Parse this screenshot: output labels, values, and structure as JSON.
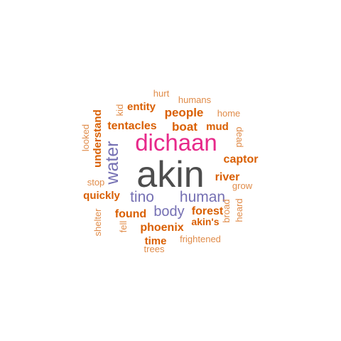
{
  "colors": {
    "gray": "#4d4d4d",
    "magenta": "#e7298a",
    "purple": "#7570b3",
    "orange": "#d95f02",
    "light_orange": "#e08c4a"
  },
  "words": [
    {
      "text": "akin",
      "color": "gray"
    },
    {
      "text": "dichaan",
      "color": "magenta"
    },
    {
      "text": "water",
      "color": "purple"
    },
    {
      "text": "tino",
      "color": "purple"
    },
    {
      "text": "human",
      "color": "purple"
    },
    {
      "text": "body",
      "color": "purple"
    },
    {
      "text": "people",
      "color": "orange"
    },
    {
      "text": "tentacles",
      "color": "orange"
    },
    {
      "text": "boat",
      "color": "orange"
    },
    {
      "text": "understand",
      "color": "orange"
    },
    {
      "text": "entity",
      "color": "orange"
    },
    {
      "text": "mud",
      "color": "orange"
    },
    {
      "text": "captor",
      "color": "orange"
    },
    {
      "text": "river",
      "color": "orange"
    },
    {
      "text": "quickly",
      "color": "orange"
    },
    {
      "text": "found",
      "color": "orange"
    },
    {
      "text": "forest",
      "color": "orange"
    },
    {
      "text": "phoenix",
      "color": "orange"
    },
    {
      "text": "akin's",
      "color": "orange"
    },
    {
      "text": "time",
      "color": "orange"
    },
    {
      "text": "hurt",
      "color": "light_orange"
    },
    {
      "text": "humans",
      "color": "light_orange"
    },
    {
      "text": "kid",
      "color": "light_orange"
    },
    {
      "text": "home",
      "color": "light_orange"
    },
    {
      "text": "looked",
      "color": "light_orange"
    },
    {
      "text": "dead",
      "color": "light_orange"
    },
    {
      "text": "stop",
      "color": "light_orange"
    },
    {
      "text": "grow",
      "color": "light_orange"
    },
    {
      "text": "shelter",
      "color": "light_orange"
    },
    {
      "text": "fell",
      "color": "light_orange"
    },
    {
      "text": "broad",
      "color": "light_orange"
    },
    {
      "text": "heard",
      "color": "light_orange"
    },
    {
      "text": "frightened",
      "color": "light_orange"
    },
    {
      "text": "trees",
      "color": "light_orange"
    }
  ]
}
